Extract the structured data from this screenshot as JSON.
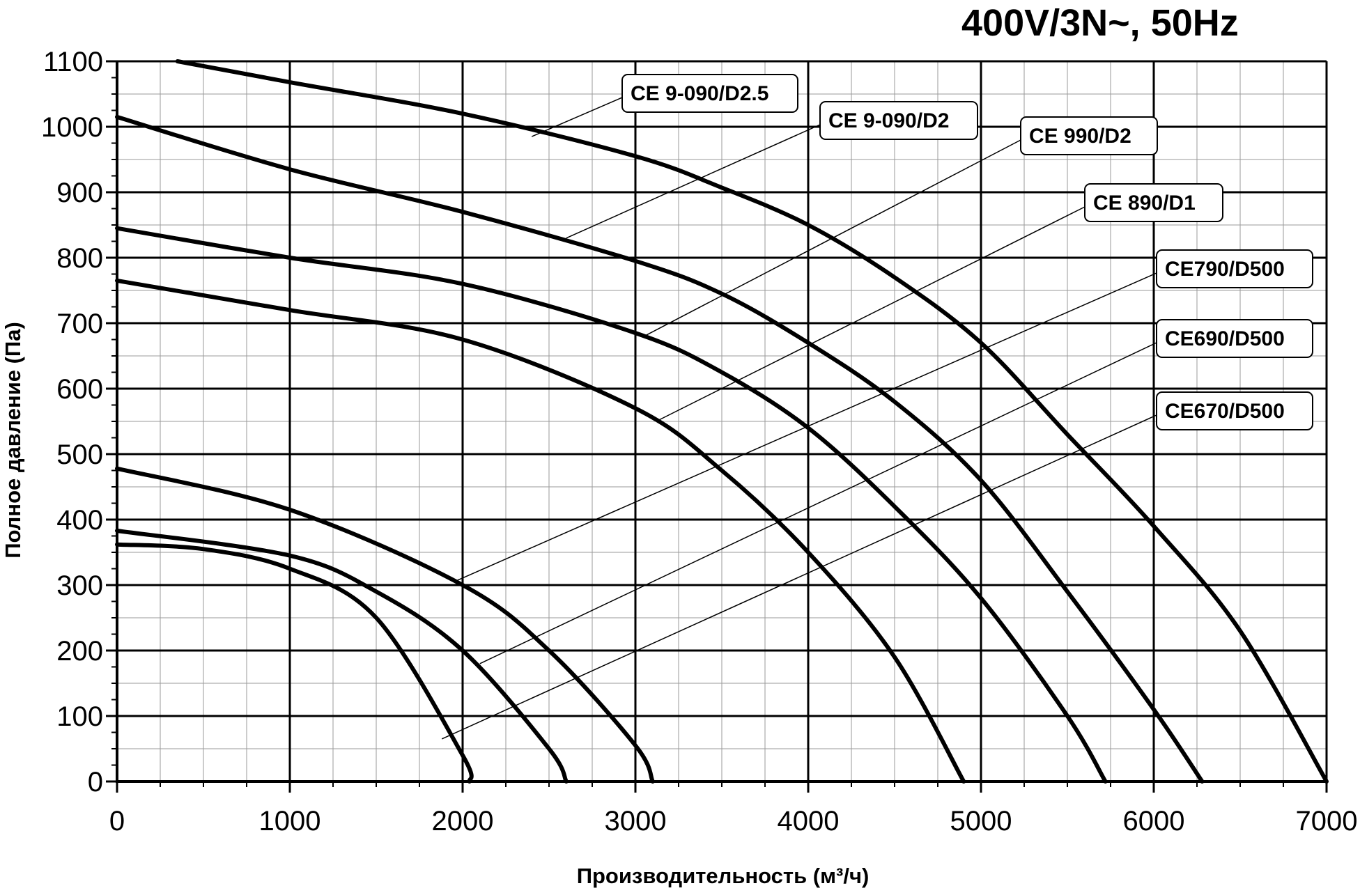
{
  "chart_data": {
    "type": "line",
    "title": "400V/3N~, 50Hz",
    "xlabel": "Производительность (м³/ч)",
    "ylabel": "Полное давление (Па)",
    "xlim": [
      0,
      7000
    ],
    "ylim": [
      0,
      1100
    ],
    "x_ticks": [
      "0",
      "1000",
      "2000",
      "3000",
      "4000",
      "5000",
      "6000",
      "7000"
    ],
    "y_ticks": [
      "0",
      "100",
      "200",
      "300",
      "400",
      "500",
      "600",
      "700",
      "800",
      "900",
      "1000",
      "1100"
    ],
    "grid": true,
    "series": [
      {
        "name": "CE 9-090/D2.5",
        "x": [
          350,
          1000,
          2000,
          3000,
          3500,
          4000,
          4500,
          5000,
          5500,
          6000,
          6500,
          7000
        ],
        "y": [
          1100,
          1068,
          1020,
          955,
          907,
          850,
          770,
          670,
          530,
          390,
          230,
          0
        ]
      },
      {
        "name": "CE 9-090/D2",
        "x": [
          0,
          1000,
          2000,
          3000,
          3500,
          4000,
          4500,
          5000,
          5500,
          6000,
          6280
        ],
        "y": [
          1015,
          935,
          870,
          795,
          745,
          670,
          580,
          460,
          290,
          110,
          0
        ]
      },
      {
        "name": "CE 990/D2",
        "x": [
          0,
          1000,
          2000,
          3000,
          3500,
          4000,
          4500,
          5000,
          5500,
          5720
        ],
        "y": [
          845,
          800,
          760,
          685,
          625,
          540,
          420,
          280,
          100,
          0
        ]
      },
      {
        "name": "CE 890/D1",
        "x": [
          0,
          1000,
          2000,
          3000,
          3500,
          4000,
          4500,
          4900
        ],
        "y": [
          765,
          720,
          675,
          570,
          475,
          350,
          190,
          0
        ]
      },
      {
        "name": "CE790/D500",
        "x": [
          0,
          1000,
          2000,
          2500,
          3000,
          3100
        ],
        "y": [
          478,
          415,
          300,
          200,
          55,
          0
        ]
      },
      {
        "name": "CE690/D500",
        "x": [
          0,
          1000,
          1500,
          2000,
          2500,
          2600
        ],
        "y": [
          383,
          345,
          290,
          200,
          50,
          0
        ]
      },
      {
        "name": "CE670/D500",
        "x": [
          0,
          500,
          1000,
          1500,
          2000,
          2040
        ],
        "y": [
          362,
          355,
          325,
          250,
          40,
          0
        ]
      }
    ]
  }
}
